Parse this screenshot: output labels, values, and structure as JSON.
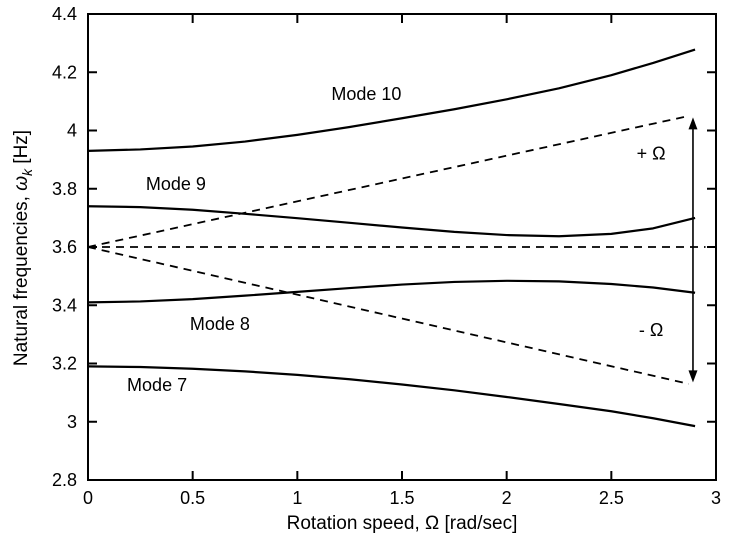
{
  "figure": {
    "background": "#ffffff",
    "line_color": "#000000"
  },
  "chart_data": {
    "type": "line",
    "title": "",
    "xlabel_prefix": "Rotation speed, ",
    "xlabel_symbol": "Ω",
    "xlabel_suffix": " [rad/sec]",
    "ylabel_prefix": "Natural frequencies, ",
    "ylabel_symbol": "ω",
    "ylabel_sub": "k",
    "ylabel_suffix": " [Hz]",
    "xlim": [
      0,
      3
    ],
    "ylim": [
      2.8,
      4.4
    ],
    "grid": false,
    "legend": "none",
    "xticks": {
      "values": [
        0,
        0.5,
        1,
        1.5,
        2,
        2.5,
        3
      ],
      "labels": [
        "0",
        "0.5",
        "1",
        "1.5",
        "2",
        "2.5",
        "3"
      ]
    },
    "yticks": {
      "values": [
        2.8,
        3.0,
        3.2,
        3.4,
        3.6,
        3.8,
        4.0,
        4.2,
        4.4
      ],
      "labels": [
        "2.8",
        "3",
        "3.2",
        "3.4",
        "3.6",
        "3.8",
        "4",
        "4.2",
        "4.4"
      ]
    },
    "series": [
      {
        "name": "Mode 10",
        "style": "solid",
        "x": [
          0,
          0.25,
          0.5,
          0.75,
          1.0,
          1.25,
          1.5,
          1.75,
          2.0,
          2.25,
          2.5,
          2.7,
          2.9
        ],
        "y": [
          3.93,
          3.935,
          3.945,
          3.962,
          3.985,
          4.012,
          4.042,
          4.073,
          4.107,
          4.145,
          4.19,
          4.232,
          4.278
        ]
      },
      {
        "name": "Mode 9",
        "style": "solid",
        "x": [
          0,
          0.25,
          0.5,
          0.75,
          1.0,
          1.25,
          1.5,
          1.75,
          2.0,
          2.25,
          2.5,
          2.7,
          2.9
        ],
        "y": [
          3.74,
          3.737,
          3.728,
          3.714,
          3.699,
          3.683,
          3.667,
          3.652,
          3.641,
          3.637,
          3.645,
          3.664,
          3.7
        ]
      },
      {
        "name": "Mode 8",
        "style": "solid",
        "x": [
          0,
          0.25,
          0.5,
          0.75,
          1.0,
          1.25,
          1.5,
          1.75,
          2.0,
          2.25,
          2.5,
          2.7,
          2.9
        ],
        "y": [
          3.41,
          3.413,
          3.421,
          3.433,
          3.446,
          3.459,
          3.471,
          3.48,
          3.484,
          3.482,
          3.473,
          3.461,
          3.443
        ]
      },
      {
        "name": "Mode 7",
        "style": "solid",
        "x": [
          0,
          0.25,
          0.5,
          0.75,
          1.0,
          1.25,
          1.5,
          1.75,
          2.0,
          2.25,
          2.5,
          2.7,
          2.9
        ],
        "y": [
          3.19,
          3.188,
          3.182,
          3.173,
          3.161,
          3.146,
          3.128,
          3.108,
          3.085,
          3.061,
          3.036,
          3.012,
          2.985
        ]
      },
      {
        "name": "synchronous line",
        "style": "dashed",
        "x": [
          0,
          2.95
        ],
        "y": [
          3.6,
          3.6
        ]
      },
      {
        "name": "plus omega line",
        "style": "dashed",
        "x": [
          0,
          2.87
        ],
        "y": [
          3.6,
          4.05
        ]
      },
      {
        "name": "minus omega line",
        "style": "dashed",
        "x": [
          0,
          2.87
        ],
        "y": [
          3.6,
          3.13
        ]
      }
    ],
    "annotations": [
      {
        "text": "Mode 10",
        "x": 1.33,
        "y": 4.105
      },
      {
        "text": "Mode 9",
        "x": 0.42,
        "y": 3.795
      },
      {
        "text": "Mode 8",
        "x": 0.63,
        "y": 3.315
      },
      {
        "text": "Mode 7",
        "x": 0.33,
        "y": 3.105
      },
      {
        "text": "+ Ω",
        "x": 2.69,
        "y": 3.9
      },
      {
        "text": "- Ω",
        "x": 2.69,
        "y": 3.295
      }
    ],
    "arrow": {
      "x": 2.89,
      "y_bottom": 3.135,
      "y_top": 4.045
    }
  }
}
